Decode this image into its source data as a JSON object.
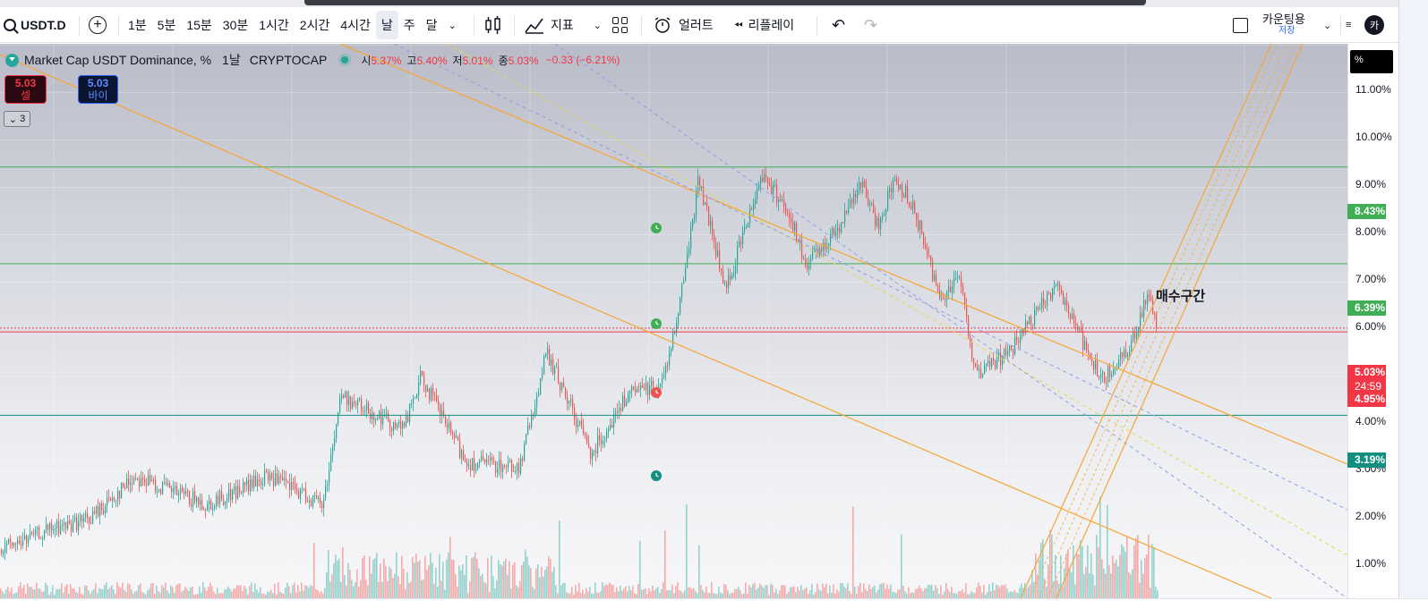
{
  "toolbar": {
    "symbol": "USDT.D",
    "intervals": [
      "1분",
      "5분",
      "15분",
      "30분",
      "1시간",
      "2시간",
      "4시간",
      "날",
      "주",
      "달"
    ],
    "active_interval": "날",
    "indicators_label": "지표",
    "alert_label": "얼러트",
    "replay_label": "리플레이",
    "layout_name": "카운팅용",
    "layout_status": "저장",
    "avatar_letter": "카"
  },
  "legend": {
    "title": "Market Cap USDT Dominance, %",
    "interval": "1날",
    "exchange": "CRYPTOCAP",
    "open_label": "시",
    "open": "5.37%",
    "high_label": "고",
    "high": "5.40%",
    "low_label": "저",
    "low": "5.01%",
    "close_label": "종",
    "close": "5.03%",
    "change": "−0.33 (−6.21%)"
  },
  "trade": {
    "sell_price": "5.03",
    "sell_label": "셀",
    "spread": "0.00",
    "buy_price": "5.03",
    "buy_label": "바이",
    "collapsed_count": "3"
  },
  "annotation": "매수구간",
  "scale": {
    "unit_button": "%",
    "ticks": [
      "11.00%",
      "10.00%",
      "9.00%",
      "8.00%",
      "7.00%",
      "6.00%",
      "4.00%",
      "3.00%",
      "2.00%",
      "1.00%"
    ],
    "labels": {
      "level_high": "8.43%",
      "level_mid": "6.39%",
      "current": "5.03%",
      "countdown": "24:59",
      "alert_line": "4.95%",
      "level_low": "3.19%"
    }
  },
  "colors": {
    "up": "#26a69a",
    "down": "#ef5350",
    "channel": "#f7a534",
    "hline_green": "#3fae55",
    "hline_teal": "#138f80",
    "price_red": "#f23645"
  },
  "chart_data": {
    "type": "candlestick",
    "series_name": "Market Cap USDT Dominance, %",
    "y_unit": "%",
    "y_ticks": [
      1,
      2,
      3,
      4,
      6,
      7,
      8,
      9,
      10,
      11
    ],
    "horizontal_levels": [
      8.43,
      6.39,
      5.03,
      4.95,
      3.19
    ],
    "last": {
      "open": 5.37,
      "high": 5.4,
      "low": 5.01,
      "close": 5.03
    }
  }
}
